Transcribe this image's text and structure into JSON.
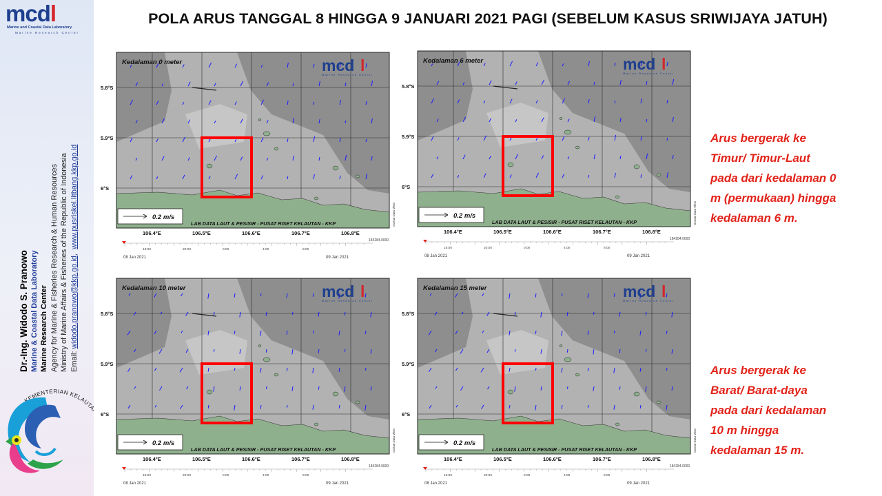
{
  "title": "POLA ARUS TANGGAL 8 HINGGA 9 JANUARI 2021 PAGI (SEBELUM KASUS SRIWIJAYA JATUH)",
  "logo": {
    "text_m": "mcd",
    "text_l": "l",
    "subtitle": "Marine and Coastal Data Laboratory",
    "subtitle2": "Marine Research Center"
  },
  "credits": {
    "name": "Dr.-Ing. Widodo S. Pranowo",
    "lab": "Marine & Coastal Data Laboratory",
    "center": "Marine Research Center",
    "agency": "Agency for Marine & Fisheries Research & Human Resources",
    "ministry": "Ministry of Marine Affairs & Fisheries of the Republic of Indonesia",
    "email_prefix": "Email: ",
    "email": "widodo.pranowo@kkp.go.id,",
    "website": "www.pusriskel.litbang.kkp.go.id"
  },
  "kkp_logo_text": "KEMENTERIAN KELAUTAN DAN PERIKANAN",
  "panels": [
    {
      "depth_label": "Kedalaman 0 meter",
      "arrow_dir": "east"
    },
    {
      "depth_label": "Kedalaman 6 meter",
      "arrow_dir": "east"
    },
    {
      "depth_label": "Kedalaman 10 meter",
      "arrow_dir": "west"
    },
    {
      "depth_label": "Kedalaman 15 meter",
      "arrow_dir": "west"
    }
  ],
  "map_common": {
    "lat_labels": [
      "5.8°S",
      "5.9°S",
      "6°S"
    ],
    "lon_labels": [
      "106.4°E",
      "106.5°E",
      "106.6°E",
      "106.7°E",
      "106.8°E"
    ],
    "scale_label": "0.2 m/s",
    "footer_label": "LAB DATA LAUT & PESISIR - PUSAT RISET KELAUTAN - KKP",
    "odv_label": "Ocean Data View",
    "timeline_ticks": [
      "16:00",
      "20:00",
      "0:00",
      "4:00",
      "8:00"
    ],
    "timeline_value": "184284.0000",
    "date_start": "08 Jan 2021",
    "date_end": "09 Jan 2021",
    "logo_sub": "Marine Research Center"
  },
  "notes": [
    {
      "lines": [
        "Arus bergerak ke",
        "Timur/ Timur-Laut",
        "pada dari kedalaman 0",
        "m (permukaan) hingga",
        "kedalaman 6 m."
      ]
    },
    {
      "lines": [
        "Arus bergerak ke",
        "Barat/ Barat-daya",
        "pada dari kedalaman",
        "10 m hingga",
        "kedalaman 15 m."
      ]
    }
  ],
  "colors": {
    "highlight_box": "#ff0000",
    "note_text": "#e2231a",
    "vector": "#1a1aff",
    "land": "#8fb08d",
    "sea_dark": "#8e8e8e",
    "sea_light": "#b2b2b2"
  }
}
